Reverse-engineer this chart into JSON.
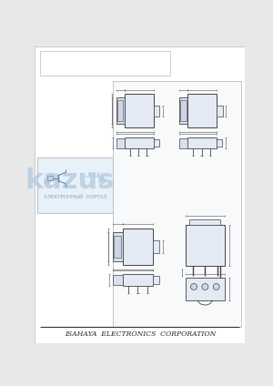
{
  "bg_color": "#e8e8e8",
  "page_bg": "#ffffff",
  "border_color": "#aaaaaa",
  "line_color": "#555555",
  "footer_text": "ISAHAYA  ELECTRONICS  CORPORATION",
  "footer_fontsize": 5.5,
  "watermark_text": "kazus",
  "watermark_sub": "ЭЛЕКТРОННЫЙ  ПОРТАЛ",
  "watermark_color": "#b0c8e0",
  "diagram_panel_fc": "#f8f9fb",
  "diagram_panel_ec": "#cccccc",
  "comp_fc": "#e4eaf4",
  "comp_ec": "#444444",
  "inner_fc": "#d8e0ee",
  "dim_color": "#555555"
}
